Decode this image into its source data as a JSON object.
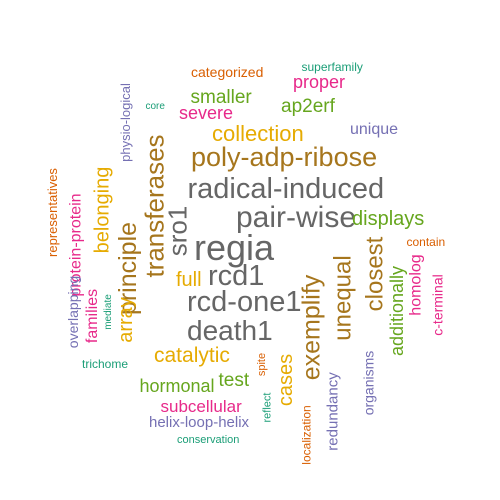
{
  "palette": {
    "teal": "#1b9e77",
    "orange": "#d95f02",
    "purple": "#7570b3",
    "magenta": "#e7298a",
    "green": "#66a61e",
    "gold": "#e6ab02",
    "brown": "#a6761d",
    "gray": "#666666"
  },
  "words": [
    {
      "text": "regia",
      "color": "gray",
      "rotated": false
    },
    {
      "text": "pair-wise",
      "color": "gray",
      "rotated": false
    },
    {
      "text": "radical-induced",
      "color": "gray",
      "rotated": false
    },
    {
      "text": "rcd-one1",
      "color": "gray",
      "rotated": false
    },
    {
      "text": "death1",
      "color": "gray",
      "rotated": false
    },
    {
      "text": "rcd1",
      "color": "gray",
      "rotated": false
    },
    {
      "text": "sro1",
      "color": "gray",
      "rotated": true
    },
    {
      "text": "poly-adp-ribose",
      "color": "brown",
      "rotated": false
    },
    {
      "text": "transferases",
      "color": "brown",
      "rotated": true
    },
    {
      "text": "principle",
      "color": "brown",
      "rotated": true
    },
    {
      "text": "exemplify",
      "color": "brown",
      "rotated": true
    },
    {
      "text": "unequal",
      "color": "brown",
      "rotated": true
    },
    {
      "text": "closest",
      "color": "brown",
      "rotated": true
    },
    {
      "text": "collection",
      "color": "gold",
      "rotated": false
    },
    {
      "text": "full",
      "color": "gold",
      "rotated": false
    },
    {
      "text": "catalytic",
      "color": "gold",
      "rotated": false
    },
    {
      "text": "cases",
      "color": "gold",
      "rotated": true
    },
    {
      "text": "array",
      "color": "gold",
      "rotated": true
    },
    {
      "text": "belonging",
      "color": "gold",
      "rotated": true
    },
    {
      "text": "displays",
      "color": "green",
      "rotated": false
    },
    {
      "text": "smaller",
      "color": "green",
      "rotated": false
    },
    {
      "text": "ap2erf",
      "color": "green",
      "rotated": false
    },
    {
      "text": "hormonal",
      "color": "green",
      "rotated": false
    },
    {
      "text": "test",
      "color": "green",
      "rotated": false
    },
    {
      "text": "additionally",
      "color": "green",
      "rotated": true
    },
    {
      "text": "severe",
      "color": "magenta",
      "rotated": false
    },
    {
      "text": "proper",
      "color": "magenta",
      "rotated": false
    },
    {
      "text": "subcellular",
      "color": "magenta",
      "rotated": false
    },
    {
      "text": "homolog",
      "color": "magenta",
      "rotated": true
    },
    {
      "text": "families",
      "color": "magenta",
      "rotated": true
    },
    {
      "text": "protein-protein",
      "color": "magenta",
      "rotated": true
    },
    {
      "text": "c-terminal",
      "color": "magenta",
      "rotated": true
    },
    {
      "text": "unique",
      "color": "purple",
      "rotated": false
    },
    {
      "text": "helix-loop-helix",
      "color": "purple",
      "rotated": false
    },
    {
      "text": "physio-logical",
      "color": "purple",
      "rotated": true
    },
    {
      "text": "overlapping",
      "color": "purple",
      "rotated": true
    },
    {
      "text": "redundancy",
      "color": "purple",
      "rotated": true
    },
    {
      "text": "organisms",
      "color": "purple",
      "rotated": true
    },
    {
      "text": "categorized",
      "color": "orange",
      "rotated": false
    },
    {
      "text": "contain",
      "color": "orange",
      "rotated": false
    },
    {
      "text": "representatives",
      "color": "orange",
      "rotated": true
    },
    {
      "text": "spite",
      "color": "orange",
      "rotated": true
    },
    {
      "text": "localization",
      "color": "orange",
      "rotated": true
    },
    {
      "text": "superfamily",
      "color": "teal",
      "rotated": false
    },
    {
      "text": "core",
      "color": "teal",
      "rotated": false
    },
    {
      "text": "trichome",
      "color": "teal",
      "rotated": false
    },
    {
      "text": "conservation",
      "color": "teal",
      "rotated": false
    },
    {
      "text": "mediate",
      "color": "teal",
      "rotated": true
    },
    {
      "text": "reflect",
      "color": "teal",
      "rotated": true
    }
  ]
}
